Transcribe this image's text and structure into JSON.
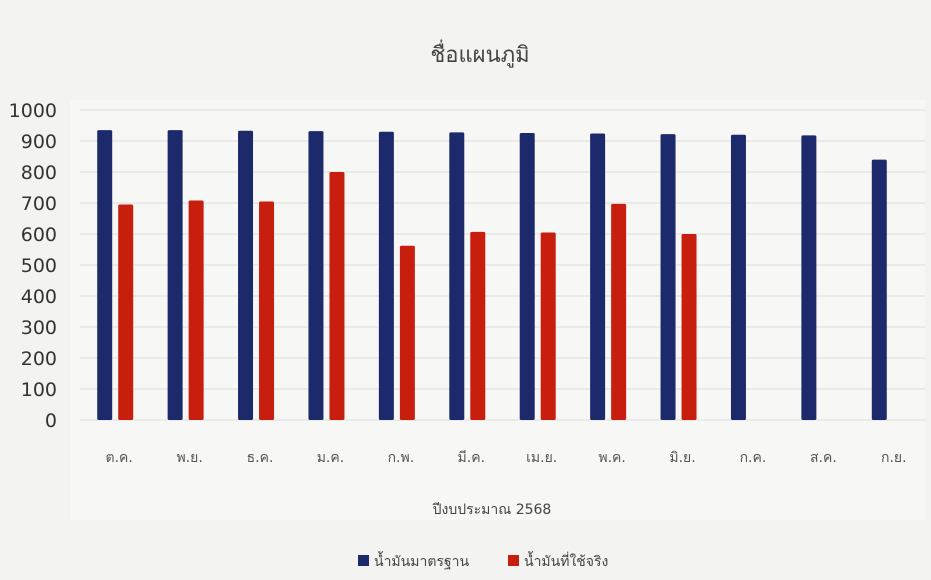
{
  "chart_data": {
    "type": "bar",
    "title": "ชื่อแผนภูมิ",
    "xlabel": "ปีงบประมาณ 2568",
    "ylabel": "",
    "ylim": [
      0,
      1000
    ],
    "yticks": [
      0,
      100,
      200,
      300,
      400,
      500,
      600,
      700,
      800,
      900,
      1000
    ],
    "categories": [
      "ต.ค.",
      "พ.ย.",
      "ธ.ค.",
      "ม.ค.",
      "ก.พ.",
      "มี.ค.",
      "เม.ย.",
      "พ.ค.",
      "มิ.ย.",
      "ก.ค.",
      "ส.ค.",
      "ก.ย."
    ],
    "series": [
      {
        "name": "น้ำมันมาตรฐาน",
        "color": "#1c2a6b",
        "values": [
          935,
          935,
          933,
          932,
          930,
          928,
          926,
          924,
          922,
          920,
          918,
          840
        ]
      },
      {
        "name": "น้ำมันที่ใช้จริง",
        "color": "#c81e0e",
        "values": [
          695,
          708,
          705,
          800,
          562,
          607,
          605,
          697,
          600,
          null,
          null,
          null
        ]
      }
    ],
    "grid": true,
    "legend_position": "bottom"
  }
}
